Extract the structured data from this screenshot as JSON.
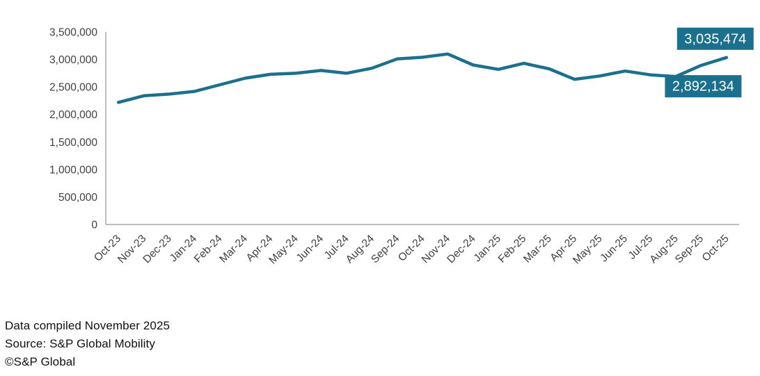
{
  "chart_data": {
    "type": "line",
    "title": "",
    "xlabel": "",
    "ylabel": "",
    "categories": [
      "Oct-23",
      "Nov-23",
      "Dec-23",
      "Jan-24",
      "Feb-24",
      "Mar-24",
      "Apr-24",
      "May-24",
      "Jun-24",
      "Jul-24",
      "Aug-24",
      "Sep-24",
      "Oct-24",
      "Nov-24",
      "Dec-24",
      "Jan-25",
      "Feb-25",
      "Mar-25",
      "Apr-25",
      "May-25",
      "Jun-25",
      "Jul-25",
      "Aug-25",
      "Sep-25",
      "Oct-25"
    ],
    "values": [
      2220000,
      2340000,
      2370000,
      2420000,
      2540000,
      2660000,
      2730000,
      2750000,
      2800000,
      2750000,
      2840000,
      3010000,
      3040000,
      3100000,
      2900000,
      2820000,
      2930000,
      2830000,
      2640000,
      2700000,
      2790000,
      2720000,
      2690000,
      2892134,
      3035474
    ],
    "ylim": [
      0,
      3500000
    ],
    "ytick_step": 500000,
    "ytick_labels": [
      "0",
      "500,000",
      "1,000,000",
      "1,500,000",
      "2,000,000",
      "2,500,000",
      "3,000,000",
      "3,500,000"
    ],
    "grid": false,
    "legend": false,
    "callouts": [
      {
        "category": "Sep-25",
        "label": "2,892,134",
        "placement": "below"
      },
      {
        "category": "Oct-25",
        "label": "3,035,474",
        "placement": "above"
      }
    ]
  },
  "colors": {
    "line": "#1A708D",
    "callout_bg": "#1A708D",
    "callout_text": "#FFFFFF",
    "axis": "#A6A6A6",
    "tick_text": "#3F3F3F",
    "footer_text": "#111111",
    "background": "#FFFFFF"
  },
  "footer": {
    "line1": "Data compiled November 2025",
    "line2": "Source: S&P Global Mobility",
    "line3": "©S&P Global"
  }
}
